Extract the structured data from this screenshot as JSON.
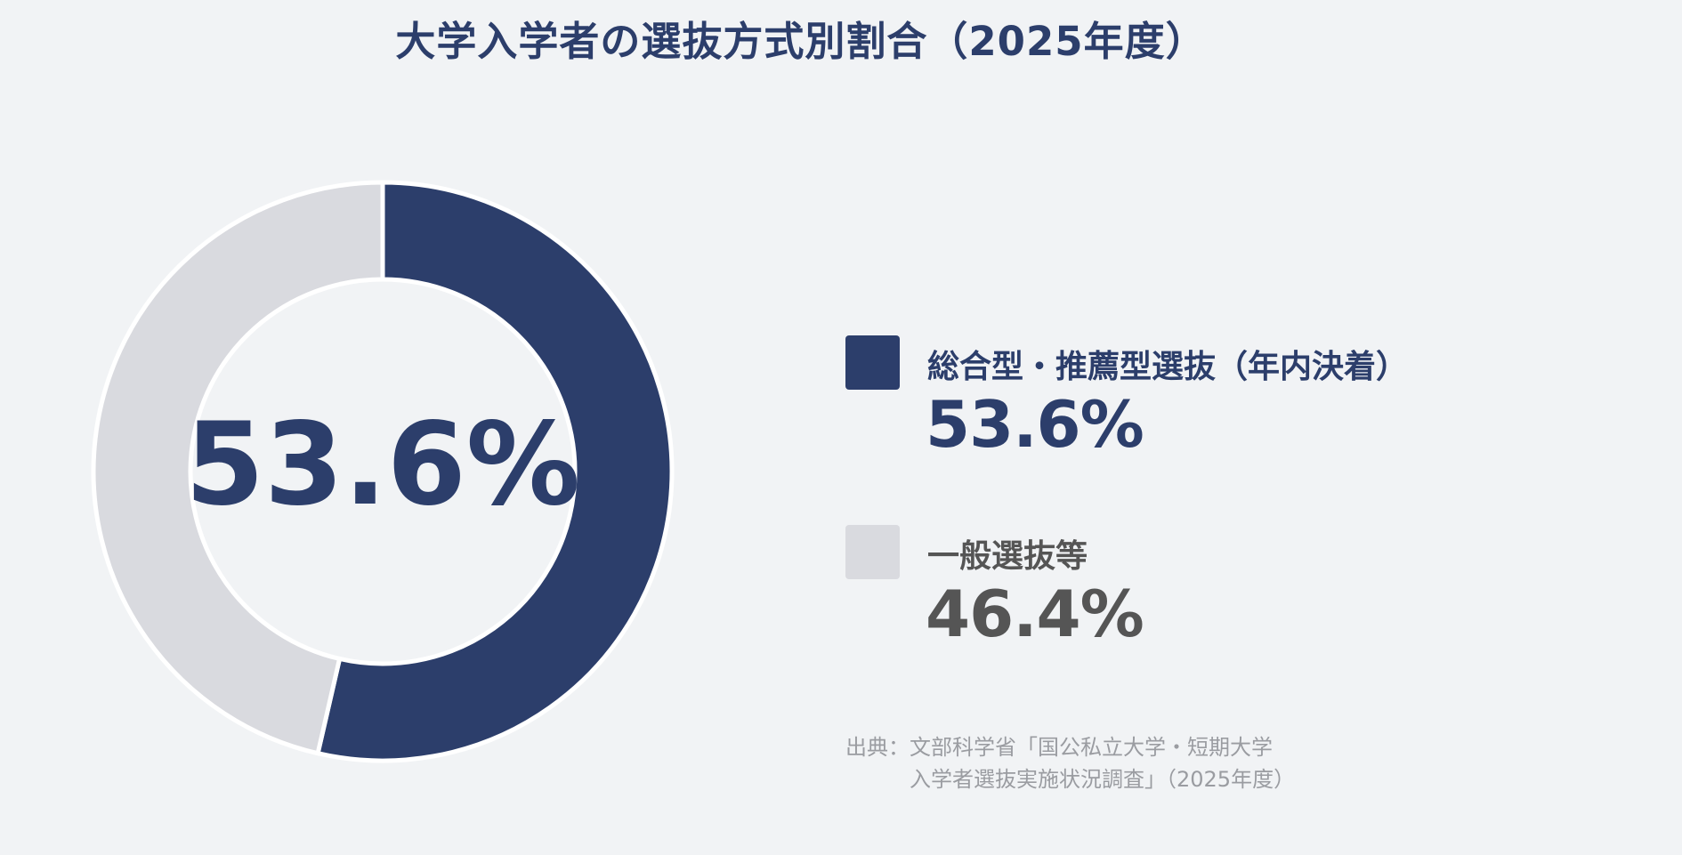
{
  "title": "大学入学者の選抜方式別割合（2025年度）",
  "center_label": "53.6%",
  "legend": [
    {
      "label": "総合型・推薦型選抜（年内決着）",
      "value_text": "53.6%",
      "color": "#2c3e6b"
    },
    {
      "label": "一般選抜等",
      "value_text": "46.4%",
      "color": "#d9dadf"
    }
  ],
  "source": {
    "line1": "出典：文部科学省「国公私立大学・短期大学",
    "line2": "入学者選抜実施状況調査」（2025年度）"
  },
  "colors": {
    "primary": "#2c3e6b",
    "secondary": "#d9dadf",
    "secondary_text": "#555555",
    "background": "#f1f3f5"
  },
  "chart_data": {
    "type": "pie",
    "title": "大学入学者の選抜方式別割合（2025年度）",
    "categories": [
      "総合型・推薦型選抜（年内決着）",
      "一般選抜等"
    ],
    "values": [
      53.6,
      46.4
    ],
    "unit": "%",
    "legend_position": "right",
    "donut": true
  }
}
